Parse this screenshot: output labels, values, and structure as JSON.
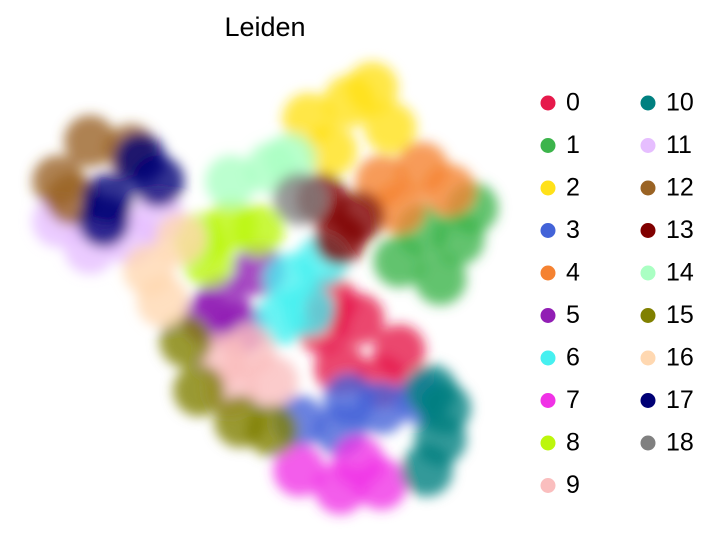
{
  "chart_data": {
    "type": "scatter",
    "title": "Leiden",
    "xlim": [
      0,
      10
    ],
    "ylim": [
      0,
      10
    ],
    "series": [
      {
        "name": "0",
        "color": "#e6194b",
        "x": [
          6.2,
          7.0,
          7.9,
          6.6,
          7.5,
          6.4
        ],
        "y": [
          4.2,
          4.4,
          3.7,
          3.3,
          3.0,
          4.8
        ]
      },
      {
        "name": "1",
        "color": "#3cb44b",
        "x": [
          8.4,
          9.2,
          8.8,
          7.9,
          9.5
        ],
        "y": [
          6.4,
          6.2,
          5.3,
          5.7,
          6.9
        ]
      },
      {
        "name": "2",
        "color": "#ffe119",
        "x": [
          5.9,
          6.8,
          7.7,
          6.4,
          7.3
        ],
        "y": [
          8.9,
          9.3,
          8.7,
          8.2,
          9.6
        ]
      },
      {
        "name": "3",
        "color": "#4363d8",
        "x": [
          5.7,
          6.6,
          7.5,
          8.4,
          6.8
        ],
        "y": [
          2.1,
          1.9,
          2.4,
          2.6,
          2.6
        ]
      },
      {
        "name": "4",
        "color": "#f58231",
        "x": [
          7.5,
          8.4,
          9.0,
          7.9
        ],
        "y": [
          7.5,
          7.8,
          7.3,
          6.9
        ]
      },
      {
        "name": "5",
        "color": "#911eb4",
        "x": [
          4.0,
          4.4,
          3.7,
          4.8
        ],
        "y": [
          4.8,
          4.2,
          4.4,
          5.5
        ]
      },
      {
        "name": "6",
        "color": "#46f0f0",
        "x": [
          5.5,
          5.9,
          5.3,
          6.2
        ],
        "y": [
          5.3,
          4.6,
          4.4,
          5.7
        ]
      },
      {
        "name": "7",
        "color": "#f032e6",
        "x": [
          5.7,
          6.6,
          7.5,
          7.0
        ],
        "y": [
          1.0,
          0.6,
          0.7,
          1.2
        ]
      },
      {
        "name": "8",
        "color": "#bcf60c",
        "x": [
          3.5,
          4.2,
          4.8,
          3.7
        ],
        "y": [
          6.2,
          6.5,
          6.4,
          5.7
        ]
      },
      {
        "name": "9",
        "color": "#fabebe",
        "x": [
          4.0,
          4.6,
          5.1,
          4.2
        ],
        "y": [
          3.5,
          3.7,
          3.0,
          2.8
        ]
      },
      {
        "name": "10",
        "color": "#008080",
        "x": [
          8.6,
          8.8,
          8.5,
          8.9
        ],
        "y": [
          2.8,
          1.7,
          1.0,
          2.4
        ]
      },
      {
        "name": "11",
        "color": "#e6beff",
        "x": [
          0.4,
          1.1,
          2.0,
          2.6
        ],
        "y": [
          6.6,
          6.0,
          6.2,
          6.7
        ]
      },
      {
        "name": "12",
        "color": "#9a6324",
        "x": [
          0.4,
          1.1,
          2.0,
          0.7
        ],
        "y": [
          7.5,
          8.4,
          8.2,
          7.1
        ]
      },
      {
        "name": "13",
        "color": "#800000",
        "x": [
          6.2,
          7.0,
          6.6
        ],
        "y": [
          7.1,
          6.7,
          6.2
        ]
      },
      {
        "name": "14",
        "color": "#aaffc3",
        "x": [
          4.2,
          5.1,
          5.5
        ],
        "y": [
          7.5,
          7.8,
          8.0
        ]
      },
      {
        "name": "15",
        "color": "#808000",
        "x": [
          3.2,
          3.5,
          4.4,
          5.1
        ],
        "y": [
          3.9,
          2.8,
          2.1,
          1.9
        ]
      },
      {
        "name": "16",
        "color": "#ffd8b1",
        "x": [
          2.4,
          2.7,
          3.1
        ],
        "y": [
          5.5,
          4.8,
          6.2
        ]
      },
      {
        "name": "17",
        "color": "#000075",
        "x": [
          1.5,
          2.2,
          2.6,
          1.4
        ],
        "y": [
          7.1,
          8.0,
          7.5,
          6.6
        ]
      },
      {
        "name": "18",
        "color": "#808080",
        "x": [
          5.7
        ],
        "y": [
          7.1
        ]
      }
    ]
  }
}
